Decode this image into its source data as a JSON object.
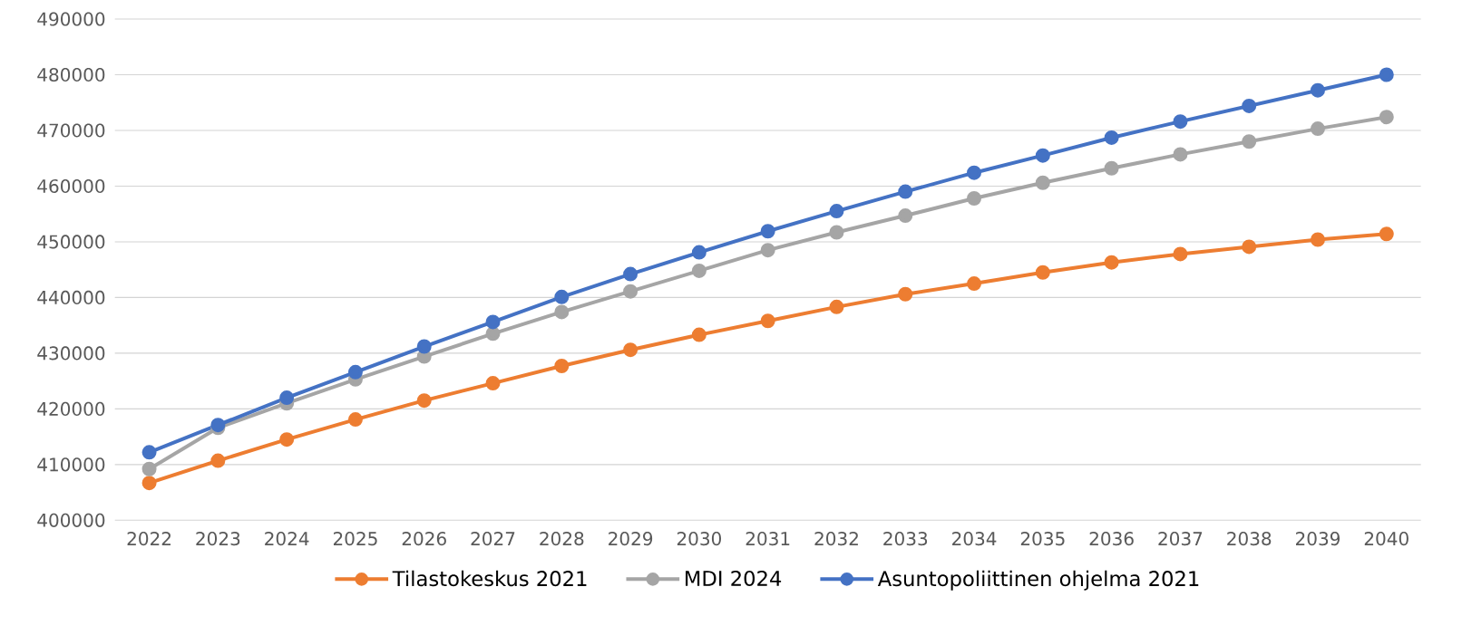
{
  "chart_data": {
    "type": "line",
    "categories": [
      "2022",
      "2023",
      "2024",
      "2025",
      "2026",
      "2027",
      "2028",
      "2029",
      "2030",
      "2031",
      "2032",
      "2033",
      "2034",
      "2035",
      "2036",
      "2037",
      "2038",
      "2039",
      "2040"
    ],
    "series": [
      {
        "name": "Tilastokeskus 2021",
        "color": "#ed7d31",
        "values": [
          406700,
          410700,
          414500,
          418100,
          421500,
          424600,
          427700,
          430600,
          433300,
          435800,
          438300,
          440600,
          442500,
          444500,
          446300,
          447800,
          449100,
          450400,
          451400
        ]
      },
      {
        "name": "MDI 2024",
        "color": "#a5a5a5",
        "values": [
          409200,
          416600,
          421000,
          425300,
          429400,
          433500,
          437400,
          441100,
          444800,
          448500,
          451700,
          454700,
          457800,
          460600,
          463200,
          465700,
          468000,
          470300,
          472400
        ]
      },
      {
        "name": "Asuntopoliittinen ohjelma 2021",
        "color": "#4472c4",
        "values": [
          412200,
          417100,
          422000,
          426600,
          431200,
          435600,
          440100,
          444200,
          448100,
          451900,
          455500,
          459000,
          462400,
          465500,
          468700,
          471600,
          474400,
          477200,
          480000
        ]
      }
    ],
    "ylim": [
      400000,
      490000
    ],
    "yticks": [
      400000,
      410000,
      420000,
      430000,
      440000,
      450000,
      460000,
      470000,
      480000,
      490000
    ],
    "grid": "y",
    "legend": "bottom",
    "marker": "circle",
    "line_style": "solid"
  }
}
